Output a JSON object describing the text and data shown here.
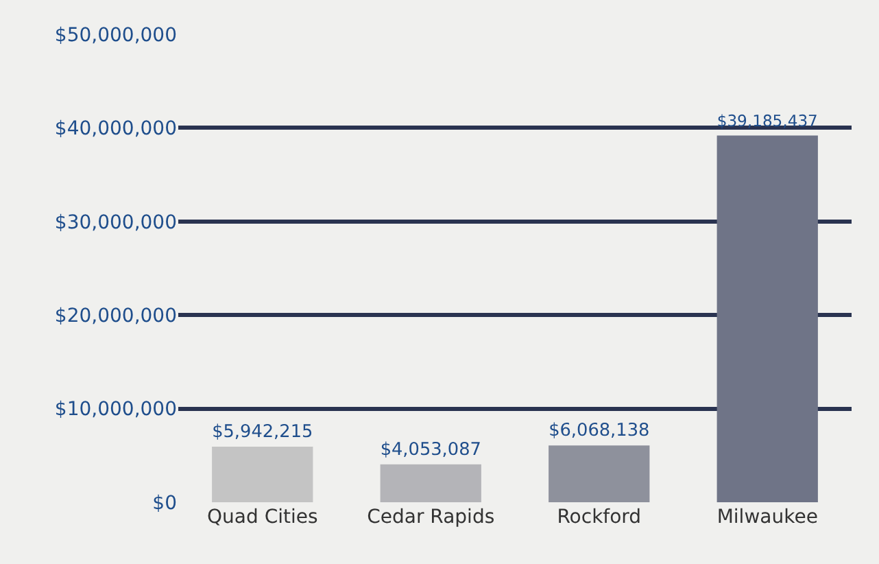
{
  "chart_data": {
    "type": "bar",
    "categories": [
      "Quad Cities",
      "Cedar Rapids",
      "Rockford",
      "Milwaukee"
    ],
    "values": [
      5942215,
      4053087,
      6068138,
      39185437
    ],
    "colors": [
      "#c4c4c4",
      "#b4b4b8",
      "#8e919c",
      "#6f7487"
    ],
    "value_labels": [
      "$5,942,215",
      "$4,053,087",
      "$6,068,138",
      "$39,185,437"
    ],
    "ylim": [
      0,
      50000000
    ],
    "yticks": [
      {
        "value": 0,
        "label": "$0"
      },
      {
        "value": 10000000,
        "label": "$10,000,000"
      },
      {
        "value": 20000000,
        "label": "$20,000,000"
      },
      {
        "value": 30000000,
        "label": "$30,000,000"
      },
      {
        "value": 40000000,
        "label": "$40,000,000"
      },
      {
        "value": 50000000,
        "label": "$50,000,000"
      }
    ],
    "grid": "y",
    "legend": false
  }
}
